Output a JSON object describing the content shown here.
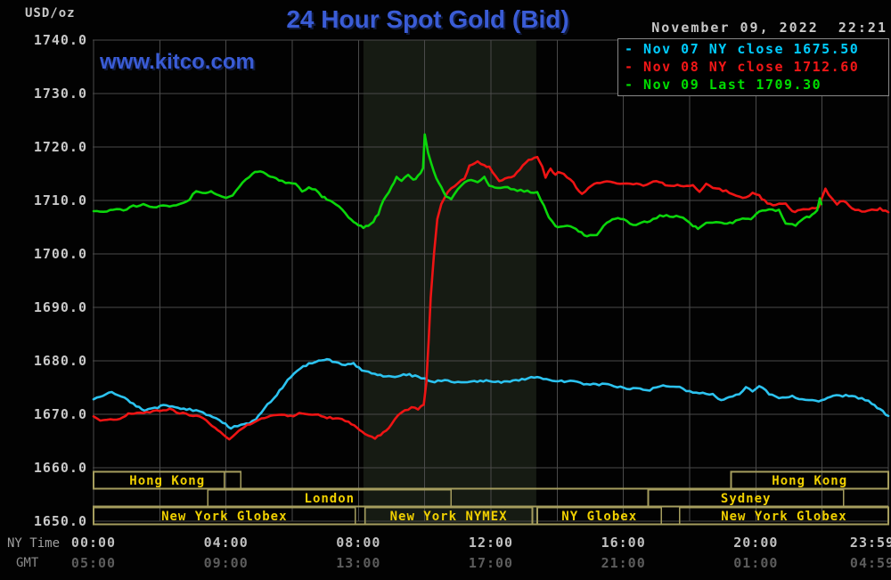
{
  "header": {
    "units_label": "USD/oz",
    "title": "24 Hour Spot Gold (Bid)",
    "watermark": "www.kitco.com",
    "timestamp": "November 09, 2022  22:21"
  },
  "legend": {
    "items": [
      {
        "label": "- Nov 07 NY close 1675.50",
        "color": "#00ccff"
      },
      {
        "label": "- Nov 08 NY close 1712.60",
        "color": "#f21717"
      },
      {
        "label": "- Nov 09 Last 1709.30",
        "color": "#00dd00"
      }
    ]
  },
  "axes": {
    "ny_time_label": "NY Time",
    "gmt_label": "GMT",
    "y_ticks": [
      "1740.0",
      "1730.0",
      "1720.0",
      "1710.0",
      "1700.0",
      "1690.0",
      "1680.0",
      "1670.0",
      "1660.0",
      "1650.0"
    ],
    "x_tick_hours": [
      0,
      4,
      8,
      12,
      16,
      20,
      24
    ],
    "ny_ticks": [
      "00:00",
      "04:00",
      "08:00",
      "12:00",
      "16:00",
      "20:00",
      "23:59"
    ],
    "gmt_ticks": [
      "05:00",
      "09:00",
      "13:00",
      "17:00",
      "21:00",
      "01:00",
      "04:59"
    ]
  },
  "sessions": {
    "rows": [
      {
        "boxes": [
          {
            "label": "Hong Kong",
            "start": 0,
            "end": 4.45,
            "divider": 3.95
          },
          {
            "label": "Hong Kong",
            "start": 19.25,
            "end": 24
          }
        ]
      },
      {
        "boxes": [
          {
            "label": "London",
            "start": 3.45,
            "end": 10.8
          },
          {
            "label": "Sydney",
            "start": 16.75,
            "end": 22.65
          }
        ]
      },
      {
        "boxes": [
          {
            "label": "New York Globex",
            "start": 0,
            "end": 7.9
          },
          {
            "label": "New York NYMEX",
            "start": 8.2,
            "end": 13.25
          },
          {
            "label": "NY Globex",
            "start": 13.4,
            "end": 17.15
          },
          {
            "label": "New York Globex",
            "start": 17.7,
            "end": 24
          }
        ]
      }
    ]
  },
  "colors": {
    "background": "#020202",
    "grid": "#4a4a4a",
    "shaded_band": "#161b13",
    "session_border": "#a59d5e",
    "session_text": "#f0d000",
    "title_blue": "#3a5cd6",
    "axis_text": "#c8c8c8",
    "ny_tick_text": "#c0c0c0",
    "gmt_tick_text": "#5c5c5c",
    "legend_border": "#888888"
  },
  "chart_data": {
    "type": "line",
    "title": "24 Hour Spot Gold (Bid)",
    "subtitle": "November 09, 2022 22:21",
    "xlabel": "NY Time (hours, 00:00-23:59)",
    "ylabel": "USD/oz",
    "ylim": [
      1650,
      1740
    ],
    "xlim_hours": [
      0,
      24
    ],
    "grid": true,
    "legend_position": "top-right",
    "shaded_band_hours": [
      8.15,
      13.37
    ],
    "series": [
      {
        "name": "Nov 07 NY close",
        "stat_label": "NY close",
        "stat_value": 1675.5,
        "color": "#2cc3f0",
        "points": [
          [
            0,
            1672.8
          ],
          [
            0.2,
            1673.3
          ],
          [
            0.55,
            1674.2
          ],
          [
            0.85,
            1673.3
          ],
          [
            1.2,
            1671.9
          ],
          [
            1.55,
            1670.6
          ],
          [
            1.85,
            1671.2
          ],
          [
            2.2,
            1671.7
          ],
          [
            2.55,
            1671.2
          ],
          [
            2.9,
            1670.9
          ],
          [
            3.3,
            1670.3
          ],
          [
            3.6,
            1669.4
          ],
          [
            3.9,
            1668.5
          ],
          [
            4.15,
            1667.5
          ],
          [
            4.45,
            1667.9
          ],
          [
            4.7,
            1668.3
          ],
          [
            4.9,
            1669.2
          ],
          [
            5.15,
            1671.1
          ],
          [
            5.45,
            1673.0
          ],
          [
            5.7,
            1675.0
          ],
          [
            5.95,
            1677.0
          ],
          [
            6.25,
            1678.6
          ],
          [
            6.5,
            1679.5
          ],
          [
            6.8,
            1680.0
          ],
          [
            7.05,
            1680.3
          ],
          [
            7.3,
            1679.7
          ],
          [
            7.6,
            1679.2
          ],
          [
            7.85,
            1679.5
          ],
          [
            8.1,
            1678.3
          ],
          [
            8.4,
            1677.8
          ],
          [
            8.75,
            1677.2
          ],
          [
            9.1,
            1677.0
          ],
          [
            9.45,
            1677.5
          ],
          [
            9.8,
            1677.0
          ],
          [
            10.3,
            1676.1
          ],
          [
            10.6,
            1676.4
          ],
          [
            11.1,
            1675.9
          ],
          [
            11.5,
            1676.1
          ],
          [
            11.95,
            1676.3
          ],
          [
            12.4,
            1676.0
          ],
          [
            12.75,
            1676.4
          ],
          [
            13.4,
            1677.0
          ],
          [
            13.85,
            1676.1
          ],
          [
            14.4,
            1676.2
          ],
          [
            14.9,
            1675.5
          ],
          [
            15.45,
            1675.6
          ],
          [
            16,
            1674.9
          ],
          [
            16.8,
            1674.6
          ],
          [
            17.1,
            1675.3
          ],
          [
            17.7,
            1675.3
          ],
          [
            17.9,
            1674.3
          ],
          [
            18.3,
            1673.9
          ],
          [
            18.7,
            1673.7
          ],
          [
            18.95,
            1672.6
          ],
          [
            19.2,
            1673.1
          ],
          [
            19.5,
            1673.8
          ],
          [
            19.7,
            1675.2
          ],
          [
            19.9,
            1674.2
          ],
          [
            20.1,
            1675.3
          ],
          [
            20.4,
            1673.9
          ],
          [
            20.6,
            1673.2
          ],
          [
            20.9,
            1673.1
          ],
          [
            21.1,
            1673.5
          ],
          [
            21.4,
            1672.7
          ],
          [
            21.9,
            1672.4
          ],
          [
            22.25,
            1673.4
          ],
          [
            22.9,
            1673.5
          ],
          [
            23.2,
            1672.9
          ],
          [
            23.5,
            1672.1
          ],
          [
            23.75,
            1670.9
          ],
          [
            24,
            1669.7
          ]
        ]
      },
      {
        "name": "Nov 08 NY close",
        "stat_label": "NY close",
        "stat_value": 1712.6,
        "color": "#ee1414",
        "points": [
          [
            0,
            1669.6
          ],
          [
            0.2,
            1669.0
          ],
          [
            0.5,
            1668.9
          ],
          [
            0.8,
            1669.3
          ],
          [
            1.05,
            1670.0
          ],
          [
            1.5,
            1670.3
          ],
          [
            1.9,
            1670.6
          ],
          [
            2.3,
            1670.9
          ],
          [
            2.6,
            1670.3
          ],
          [
            2.9,
            1669.8
          ],
          [
            3.2,
            1669.5
          ],
          [
            3.5,
            1668.4
          ],
          [
            3.75,
            1666.9
          ],
          [
            4.0,
            1665.8
          ],
          [
            4.1,
            1665.3
          ],
          [
            4.3,
            1666.5
          ],
          [
            4.55,
            1667.6
          ],
          [
            4.9,
            1668.8
          ],
          [
            5.25,
            1669.4
          ],
          [
            5.6,
            1670.0
          ],
          [
            5.95,
            1669.6
          ],
          [
            6.3,
            1670.3
          ],
          [
            6.7,
            1670.0
          ],
          [
            7.05,
            1669.4
          ],
          [
            7.4,
            1669.2
          ],
          [
            7.7,
            1668.7
          ],
          [
            7.95,
            1667.5
          ],
          [
            8.2,
            1666.3
          ],
          [
            8.5,
            1665.5
          ],
          [
            8.75,
            1666.5
          ],
          [
            9.0,
            1668.1
          ],
          [
            9.2,
            1670.0
          ],
          [
            9.4,
            1670.8
          ],
          [
            9.6,
            1671.2
          ],
          [
            9.8,
            1671.0
          ],
          [
            9.97,
            1671.8
          ],
          [
            10.05,
            1676.0
          ],
          [
            10.12,
            1684.0
          ],
          [
            10.18,
            1692.0
          ],
          [
            10.28,
            1700.0
          ],
          [
            10.38,
            1706.5
          ],
          [
            10.5,
            1709.5
          ],
          [
            10.7,
            1711.7
          ],
          [
            11.0,
            1713.1
          ],
          [
            11.2,
            1714.2
          ],
          [
            11.35,
            1716.5
          ],
          [
            11.6,
            1717.2
          ],
          [
            11.8,
            1716.5
          ],
          [
            11.95,
            1716.2
          ],
          [
            12.25,
            1713.6
          ],
          [
            12.7,
            1714.6
          ],
          [
            13.05,
            1717.2
          ],
          [
            13.4,
            1718.3
          ],
          [
            13.55,
            1716.4
          ],
          [
            13.65,
            1714.4
          ],
          [
            13.8,
            1715.8
          ],
          [
            13.95,
            1715.0
          ],
          [
            14.1,
            1715.3
          ],
          [
            14.4,
            1713.9
          ],
          [
            14.75,
            1711.1
          ],
          [
            14.95,
            1712.2
          ],
          [
            15.2,
            1713.3
          ],
          [
            15.5,
            1713.6
          ],
          [
            15.8,
            1713.1
          ],
          [
            16.2,
            1713.3
          ],
          [
            16.6,
            1712.8
          ],
          [
            17.0,
            1713.6
          ],
          [
            17.35,
            1712.8
          ],
          [
            18.1,
            1712.8
          ],
          [
            18.3,
            1711.7
          ],
          [
            18.5,
            1713.1
          ],
          [
            18.8,
            1712.2
          ],
          [
            19.1,
            1711.7
          ],
          [
            19.4,
            1710.8
          ],
          [
            19.7,
            1710.5
          ],
          [
            19.9,
            1711.6
          ],
          [
            20.1,
            1710.9
          ],
          [
            20.35,
            1709.4
          ],
          [
            20.6,
            1709.2
          ],
          [
            20.9,
            1709.6
          ],
          [
            21.1,
            1707.9
          ],
          [
            21.35,
            1708.1
          ],
          [
            21.6,
            1708.4
          ],
          [
            21.9,
            1708.6
          ],
          [
            22.0,
            1710.5
          ],
          [
            22.1,
            1712.2
          ],
          [
            22.3,
            1710.3
          ],
          [
            22.45,
            1709.4
          ],
          [
            22.65,
            1710.0
          ],
          [
            22.9,
            1708.7
          ],
          [
            23.2,
            1707.8
          ],
          [
            23.5,
            1708.2
          ],
          [
            23.75,
            1708.4
          ],
          [
            24,
            1707.8
          ]
        ]
      },
      {
        "name": "Nov 09 Last",
        "stat_label": "Last",
        "stat_value": 1709.3,
        "color": "#0bd60b",
        "points": [
          [
            0,
            1708.0
          ],
          [
            0.3,
            1707.8
          ],
          [
            0.6,
            1708.4
          ],
          [
            0.9,
            1708.1
          ],
          [
            1.2,
            1708.9
          ],
          [
            1.5,
            1709.2
          ],
          [
            1.8,
            1708.6
          ],
          [
            2.1,
            1709.2
          ],
          [
            2.4,
            1708.9
          ],
          [
            2.7,
            1709.5
          ],
          [
            2.9,
            1710.3
          ],
          [
            3.1,
            1711.9
          ],
          [
            3.3,
            1711.4
          ],
          [
            3.55,
            1711.7
          ],
          [
            3.8,
            1710.8
          ],
          [
            4.0,
            1710.6
          ],
          [
            4.2,
            1711.1
          ],
          [
            4.4,
            1712.5
          ],
          [
            4.6,
            1713.9
          ],
          [
            4.8,
            1715.0
          ],
          [
            4.95,
            1715.5
          ],
          [
            5.2,
            1715.0
          ],
          [
            5.35,
            1714.4
          ],
          [
            5.6,
            1713.9
          ],
          [
            5.8,
            1713.3
          ],
          [
            6.1,
            1713.1
          ],
          [
            6.3,
            1711.7
          ],
          [
            6.5,
            1712.3
          ],
          [
            6.7,
            1711.9
          ],
          [
            6.9,
            1710.8
          ],
          [
            7.05,
            1710.3
          ],
          [
            7.25,
            1709.4
          ],
          [
            7.5,
            1708.4
          ],
          [
            7.7,
            1706.9
          ],
          [
            7.85,
            1706.1
          ],
          [
            8.0,
            1705.3
          ],
          [
            8.15,
            1705.0
          ],
          [
            8.3,
            1705.3
          ],
          [
            8.45,
            1706.1
          ],
          [
            8.6,
            1707.5
          ],
          [
            8.75,
            1710.0
          ],
          [
            9.0,
            1712.5
          ],
          [
            9.15,
            1714.5
          ],
          [
            9.3,
            1713.5
          ],
          [
            9.5,
            1714.8
          ],
          [
            9.65,
            1713.8
          ],
          [
            9.8,
            1714.5
          ],
          [
            9.95,
            1716.0
          ],
          [
            10.0,
            1722.5
          ],
          [
            10.1,
            1719.0
          ],
          [
            10.2,
            1716.9
          ],
          [
            10.35,
            1714.0
          ],
          [
            10.5,
            1712.5
          ],
          [
            10.65,
            1710.8
          ],
          [
            10.8,
            1710.3
          ],
          [
            11.0,
            1712.0
          ],
          [
            11.2,
            1713.3
          ],
          [
            11.4,
            1714.0
          ],
          [
            11.6,
            1713.5
          ],
          [
            11.8,
            1714.3
          ],
          [
            11.95,
            1712.7
          ],
          [
            12.2,
            1712.4
          ],
          [
            12.5,
            1712.5
          ],
          [
            12.8,
            1711.9
          ],
          [
            13.1,
            1711.7
          ],
          [
            13.4,
            1711.4
          ],
          [
            13.6,
            1709.2
          ],
          [
            13.75,
            1706.9
          ],
          [
            13.95,
            1705.3
          ],
          [
            14.1,
            1705.0
          ],
          [
            14.4,
            1705.3
          ],
          [
            14.65,
            1704.2
          ],
          [
            14.9,
            1703.3
          ],
          [
            15.2,
            1703.6
          ],
          [
            15.5,
            1705.8
          ],
          [
            15.75,
            1706.7
          ],
          [
            16.0,
            1706.4
          ],
          [
            16.3,
            1705.3
          ],
          [
            16.55,
            1705.8
          ],
          [
            16.8,
            1706.1
          ],
          [
            17.1,
            1707.2
          ],
          [
            17.8,
            1706.9
          ],
          [
            18.1,
            1705.3
          ],
          [
            18.25,
            1704.7
          ],
          [
            18.5,
            1705.8
          ],
          [
            18.8,
            1706.1
          ],
          [
            19.05,
            1705.6
          ],
          [
            19.3,
            1705.8
          ],
          [
            19.6,
            1706.7
          ],
          [
            19.85,
            1706.4
          ],
          [
            20.1,
            1708.1
          ],
          [
            20.4,
            1708.4
          ],
          [
            20.7,
            1708.1
          ],
          [
            20.9,
            1705.8
          ],
          [
            21.2,
            1705.3
          ],
          [
            21.45,
            1706.7
          ],
          [
            21.7,
            1707.2
          ],
          [
            21.85,
            1708.1
          ],
          [
            21.93,
            1710.4
          ],
          [
            21.98,
            1709.3
          ]
        ]
      }
    ]
  }
}
